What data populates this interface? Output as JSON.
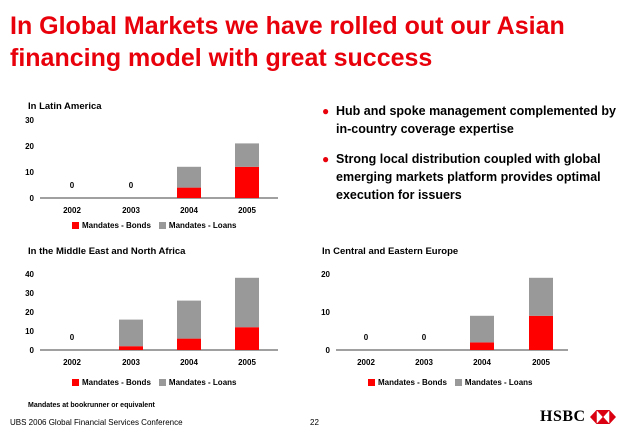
{
  "title": "In Global Markets we have rolled out our Asian financing model with great success",
  "bullets": [
    "Hub and spoke management complemented by in-country coverage expertise",
    "Strong local distribution coupled with global emerging markets platform provides optimal execution for issuers"
  ],
  "footnote": "Mandates at bookrunner or equivalent",
  "footer": "UBS 2006 Global Financial Services Conference",
  "page_number": "22",
  "logo_text": "HSBC",
  "colors": {
    "bonds": "#ff0000",
    "loans": "#999999",
    "title": "#e8000b"
  },
  "chart_data": [
    {
      "type": "bar",
      "stacked": true,
      "title": "In Latin America",
      "categories": [
        "2002",
        "2003",
        "2004",
        "2005"
      ],
      "series": [
        {
          "name": "Mandates - Bonds",
          "values": [
            0,
            0,
            4,
            12
          ]
        },
        {
          "name": "Mandates - Loans",
          "values": [
            0,
            0,
            8,
            9
          ]
        }
      ],
      "zero_labels": [
        "0",
        "0",
        "",
        ""
      ],
      "ylim": [
        0,
        30
      ],
      "yticks": [
        0,
        10,
        20,
        30
      ],
      "legend": [
        "Mandates - Bonds",
        "Mandates - Loans"
      ]
    },
    {
      "type": "bar",
      "stacked": true,
      "title": "In the Middle East and North Africa",
      "categories": [
        "2002",
        "2003",
        "2004",
        "2005"
      ],
      "series": [
        {
          "name": "Mandates - Bonds",
          "values": [
            0,
            2,
            6,
            12
          ]
        },
        {
          "name": "Mandates - Loans",
          "values": [
            0,
            14,
            20,
            26
          ]
        }
      ],
      "zero_labels": [
        "0",
        "",
        "",
        ""
      ],
      "ylim": [
        0,
        40
      ],
      "yticks": [
        0,
        10,
        20,
        30,
        40
      ],
      "legend": [
        "Mandates - Bonds",
        "Mandates - Loans"
      ]
    },
    {
      "type": "bar",
      "stacked": true,
      "title": "In Central and Eastern Europe",
      "categories": [
        "2002",
        "2003",
        "2004",
        "2005"
      ],
      "series": [
        {
          "name": "Mandates - Bonds",
          "values": [
            0,
            0,
            2,
            9
          ]
        },
        {
          "name": "Mandates - Loans",
          "values": [
            0,
            0,
            7,
            10
          ]
        }
      ],
      "zero_labels": [
        "0",
        "0",
        "",
        ""
      ],
      "ylim": [
        0,
        20
      ],
      "yticks": [
        0,
        10,
        20
      ],
      "legend": [
        "Mandates - Bonds",
        "Mandates - Loans"
      ]
    }
  ]
}
